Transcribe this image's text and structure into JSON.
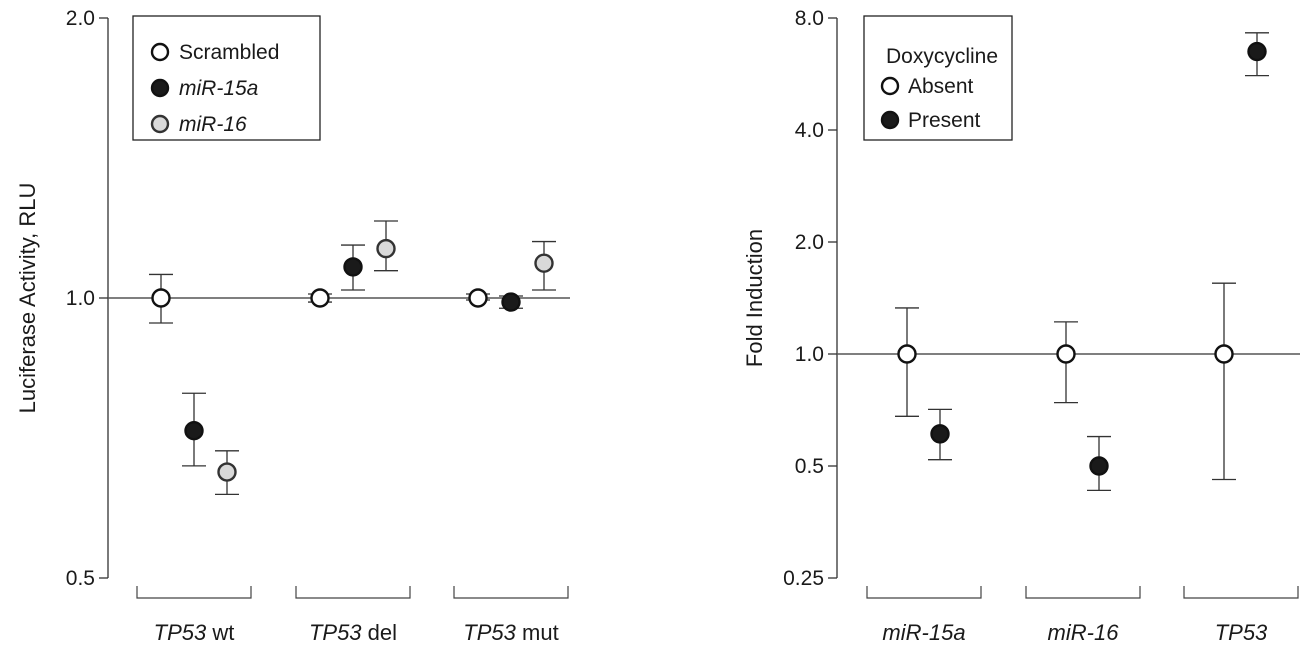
{
  "chart_data": [
    {
      "type": "scatter",
      "y_scale": "log",
      "ylabel": "Luciferase Activity, RLU",
      "ylim": [
        0.5,
        2.0
      ],
      "y_ticks": [
        "0.5",
        "1.0",
        "2.0"
      ],
      "reference_line": 1.0,
      "categories": [
        {
          "italic": "TP53",
          "rest": " wt"
        },
        {
          "italic": "TP53",
          "rest": " del"
        },
        {
          "italic": "TP53",
          "rest": " mut"
        }
      ],
      "legend": {
        "placement": "top-left",
        "title": "",
        "entries": [
          {
            "label": "Scrambled",
            "italic": false
          },
          {
            "label": "miR-15a",
            "italic": true
          },
          {
            "label": "miR-16",
            "italic": true
          }
        ]
      },
      "series": [
        {
          "name": "Scrambled",
          "fill": "#ffffff",
          "stroke": "#111111",
          "values": [
            1.0,
            1.0,
            1.0
          ],
          "err_low": [
            0.94,
            0.99,
            0.995
          ],
          "err_high": [
            1.06,
            1.01,
            1.01
          ]
        },
        {
          "name": "miR-15a",
          "fill": "#1a1a1a",
          "stroke": "#111111",
          "values": [
            0.72,
            1.08,
            0.99
          ],
          "err_low": [
            0.66,
            1.02,
            0.975
          ],
          "err_high": [
            0.79,
            1.14,
            1.005
          ]
        },
        {
          "name": "miR-16",
          "fill": "#d9d9d9",
          "stroke": "#333333",
          "values": [
            0.65,
            1.13,
            1.09
          ],
          "err_low": [
            0.615,
            1.07,
            1.02
          ],
          "err_high": [
            0.685,
            1.21,
            1.15
          ]
        }
      ]
    },
    {
      "type": "scatter",
      "y_scale": "log",
      "ylabel": "Fold Induction",
      "ylim": [
        0.25,
        8.0
      ],
      "y_ticks": [
        "0.25",
        "0.5",
        "1.0",
        "2.0",
        "4.0",
        "8.0"
      ],
      "reference_line": 1.0,
      "categories": [
        {
          "italic": "miR-15a",
          "rest": ""
        },
        {
          "italic": "miR-16",
          "rest": ""
        },
        {
          "italic": "TP53",
          "rest": ""
        }
      ],
      "legend": {
        "placement": "top-left",
        "title": "Doxycycline",
        "entries": [
          {
            "label": "Absent",
            "italic": false
          },
          {
            "label": "Present",
            "italic": false
          }
        ]
      },
      "series": [
        {
          "name": "Absent",
          "fill": "#ffffff",
          "stroke": "#111111",
          "values": [
            1.0,
            1.0,
            1.0
          ],
          "err_low": [
            0.68,
            0.74,
            0.46
          ],
          "err_high": [
            1.33,
            1.22,
            1.55
          ]
        },
        {
          "name": "Present",
          "fill": "#1a1a1a",
          "stroke": "#111111",
          "values": [
            0.61,
            0.5,
            6.5
          ],
          "err_low": [
            0.52,
            0.43,
            5.6
          ],
          "err_high": [
            0.71,
            0.6,
            7.3
          ]
        }
      ]
    }
  ]
}
